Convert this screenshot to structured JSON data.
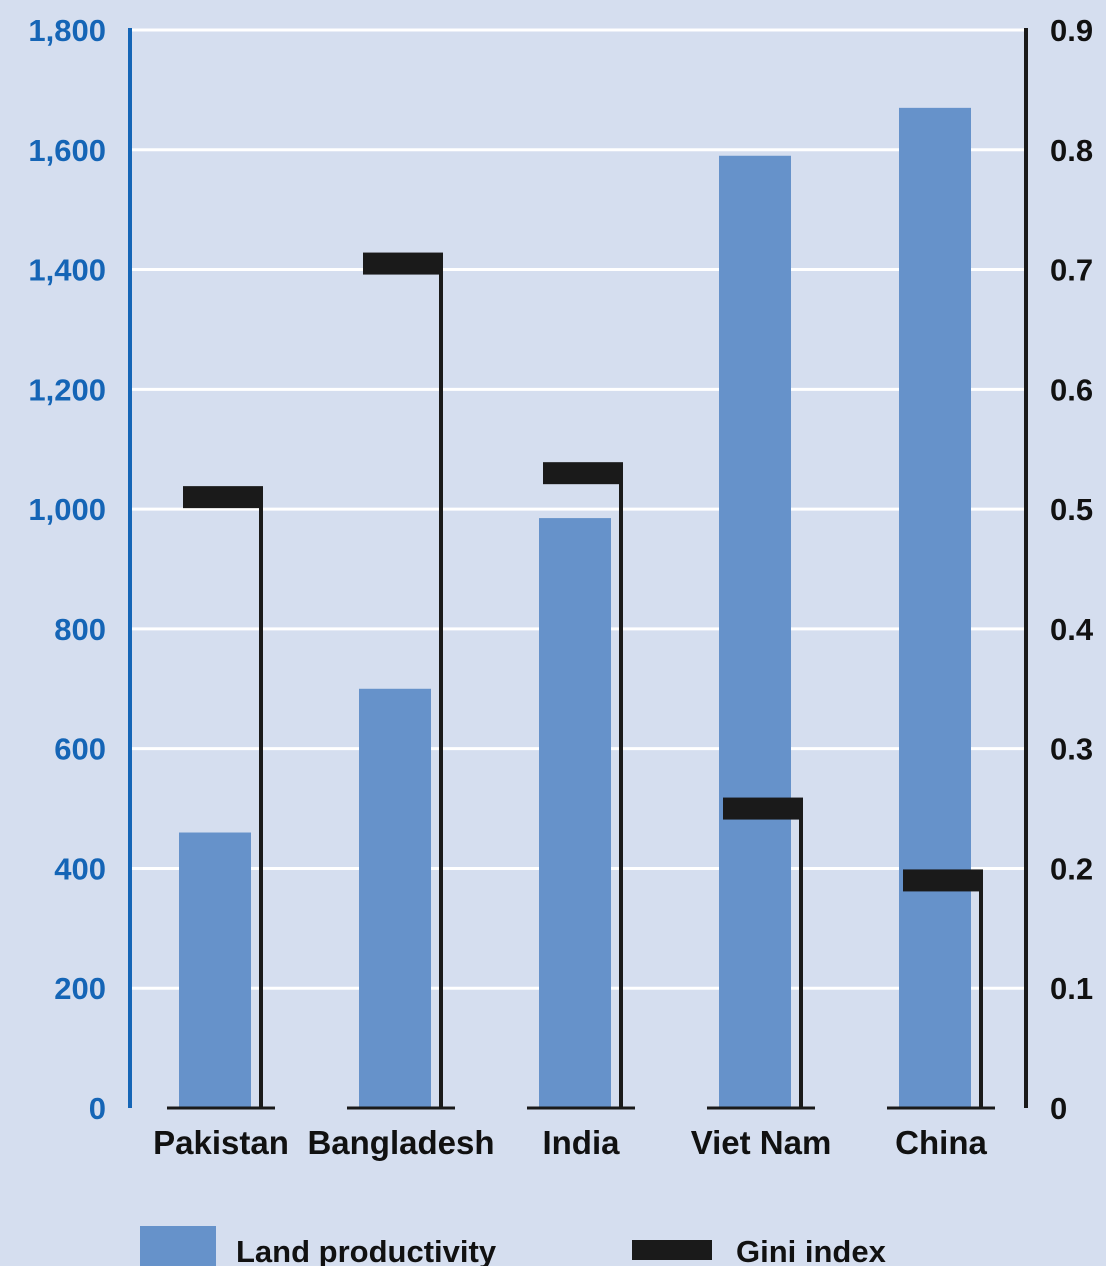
{
  "chart_data": {
    "type": "bar",
    "title": "",
    "categories": [
      "Pakistan",
      "Bangladesh",
      "India",
      "Viet Nam",
      "China"
    ],
    "series": [
      {
        "name": "Land productivity",
        "axis": "left",
        "values": [
          460,
          700,
          985,
          1590,
          1670
        ]
      },
      {
        "name": "Gini index",
        "axis": "right",
        "style": "marker-with-line",
        "values": [
          0.51,
          0.705,
          0.53,
          0.25,
          0.19
        ]
      }
    ],
    "left_axis": {
      "min": 0,
      "max": 1800,
      "step": 200,
      "tick_labels": [
        "0",
        "200",
        "400",
        "600",
        "800",
        "1,000",
        "1,200",
        "1,400",
        "1,600",
        "1,800"
      ]
    },
    "right_axis": {
      "min": 0,
      "max": 0.9,
      "step": 0.1,
      "tick_labels": [
        "0",
        "0.1",
        "0.2",
        "0.3",
        "0.4",
        "0.5",
        "0.6",
        "0.7",
        "0.8",
        "0.9"
      ]
    },
    "grid": true,
    "legend_position": "bottom",
    "colors": {
      "background": "#d5deef",
      "bar": "#6692ca",
      "gini": "#1a1a1a",
      "left_axis": "#1565b6",
      "right_axis": "#1a1a1a",
      "grid": "#ffffff"
    }
  }
}
